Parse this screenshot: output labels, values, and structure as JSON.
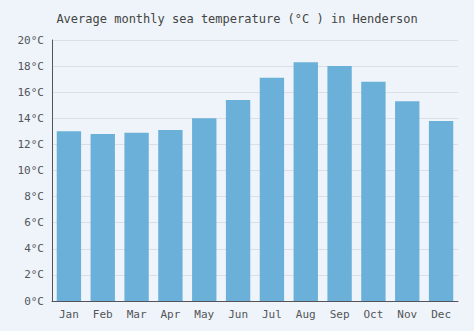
{
  "chart_data": {
    "type": "bar",
    "title": "Average monthly sea temperature (°C ) in Henderson",
    "categories": [
      "Jan",
      "Feb",
      "Mar",
      "Apr",
      "May",
      "Jun",
      "Jul",
      "Aug",
      "Sep",
      "Oct",
      "Nov",
      "Dec"
    ],
    "values": [
      13.0,
      12.8,
      12.9,
      13.1,
      14.0,
      15.4,
      17.1,
      18.3,
      18.0,
      16.8,
      15.3,
      13.8
    ],
    "color": "#6ab0d8",
    "ylim": [
      0,
      20
    ],
    "yticks": [
      {
        "value": 0,
        "label": "0°C"
      },
      {
        "value": 2,
        "label": "2°C"
      },
      {
        "value": 4,
        "label": "4°C"
      },
      {
        "value": 6,
        "label": "6°C"
      },
      {
        "value": 8,
        "label": "8°C"
      },
      {
        "value": 10,
        "label": "10°C"
      },
      {
        "value": 12,
        "label": "12°C"
      },
      {
        "value": 14,
        "label": "14°C"
      },
      {
        "value": 16,
        "label": "16°C"
      },
      {
        "value": 18,
        "label": "18°C"
      },
      {
        "value": 20,
        "label": "20°C"
      }
    ],
    "grid": true
  }
}
